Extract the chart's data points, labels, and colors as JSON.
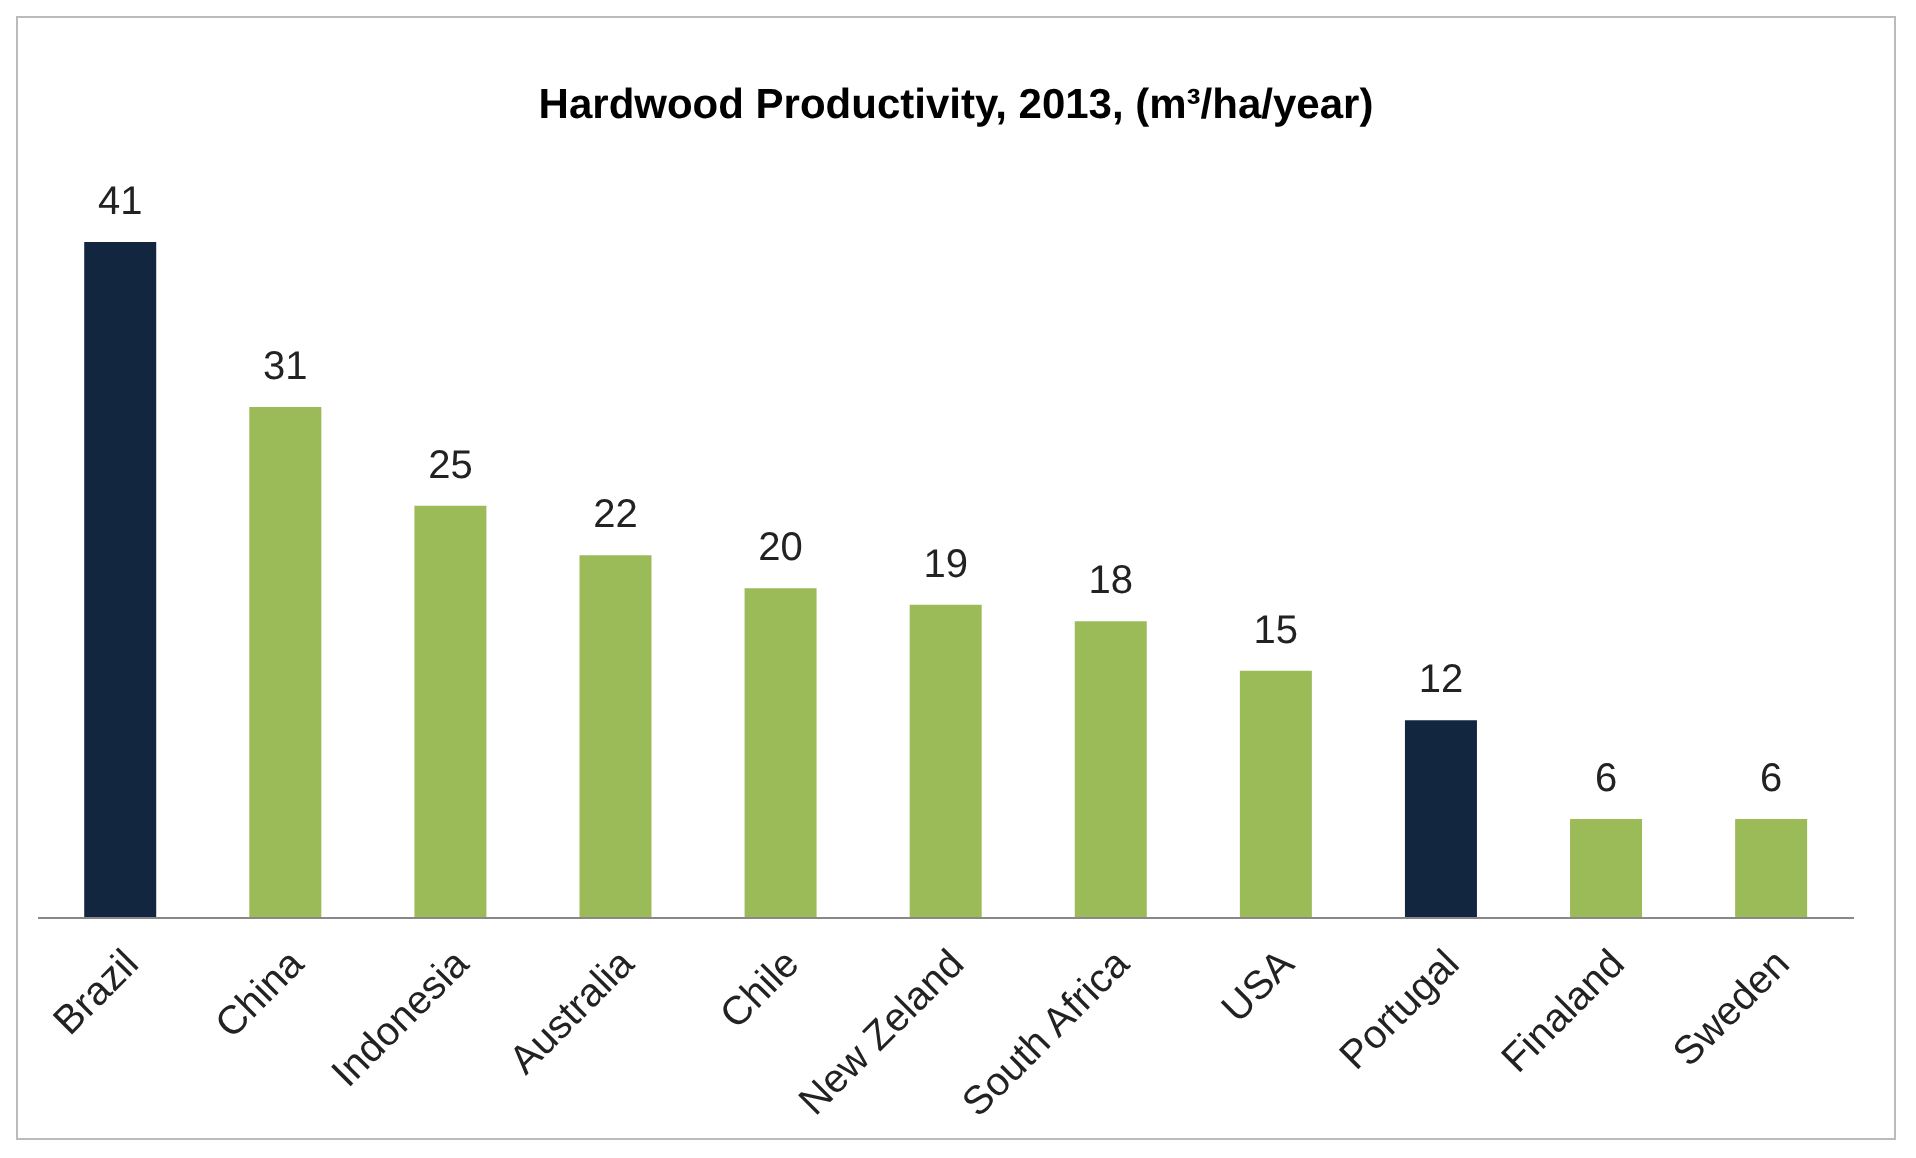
{
  "chart_data": {
    "type": "bar",
    "title": "Hardwood Productivity, 2013, (m³/ha/year)",
    "categories": [
      "Brazil",
      "China",
      "Indonesia",
      "Australia",
      "Chile",
      "New Zeland",
      "South Africa",
      "USA",
      "Portugal",
      "Finaland",
      "Sweden"
    ],
    "values": [
      41,
      31,
      25,
      22,
      20,
      19,
      18,
      15,
      12,
      6,
      6
    ],
    "colors": [
      "#13263f",
      "#9bbb59",
      "#9bbb59",
      "#9bbb59",
      "#9bbb59",
      "#9bbb59",
      "#9bbb59",
      "#9bbb59",
      "#13263f",
      "#9bbb59",
      "#9bbb59"
    ],
    "data_labels": true
  }
}
